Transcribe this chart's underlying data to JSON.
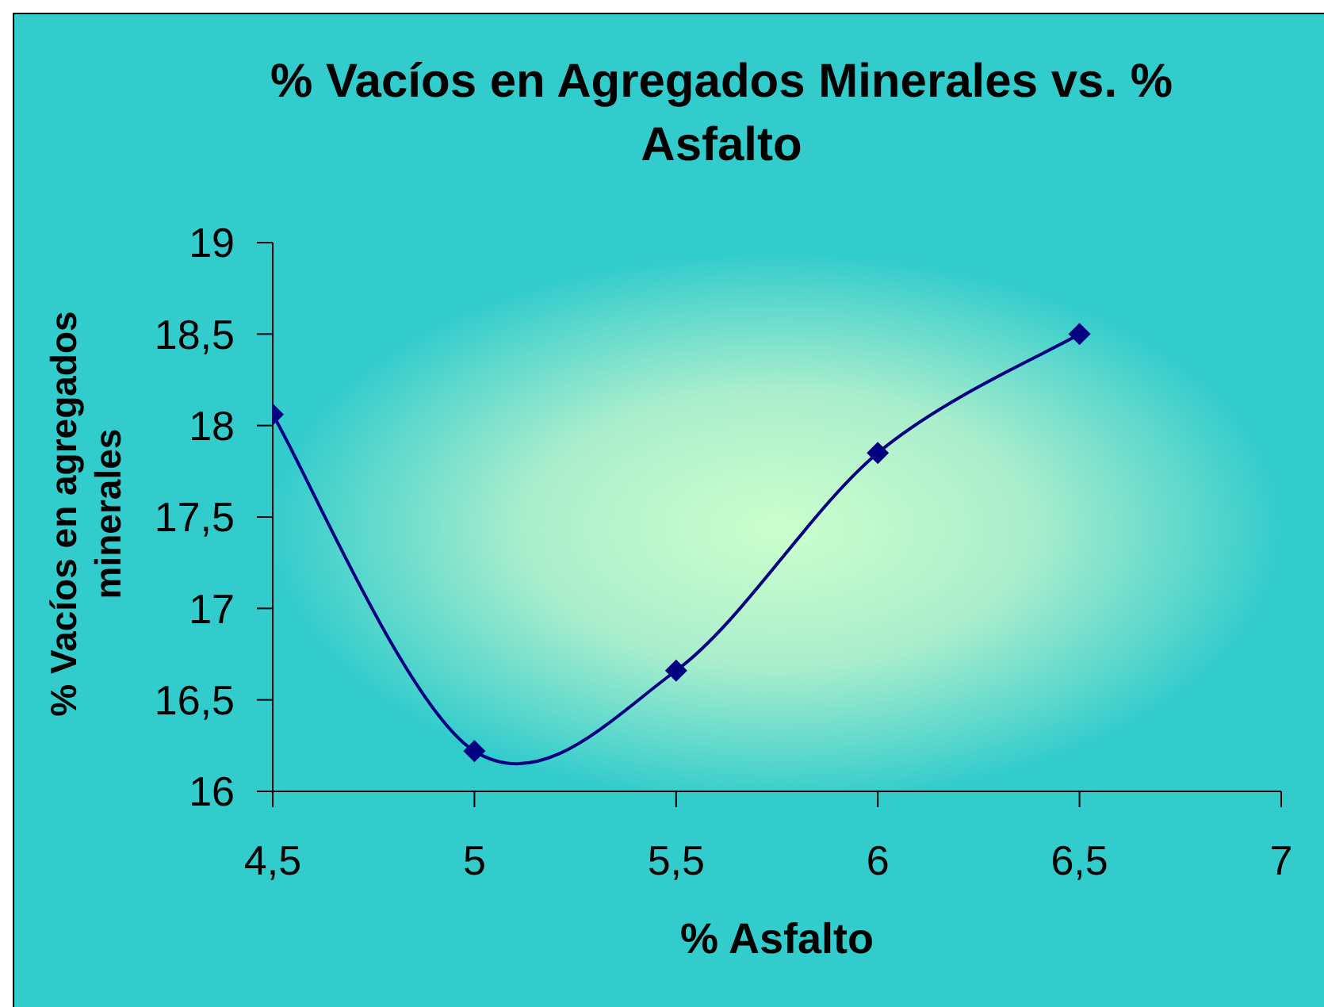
{
  "chart_data": {
    "type": "line",
    "title": "% Vacíos en Agregados Minerales vs. % Asfalto",
    "xlabel": "% Asfalto",
    "ylabel": "% Vacíos en agregados minerales",
    "x": [
      4.5,
      5,
      5.5,
      6,
      6.5
    ],
    "series": [
      {
        "color": "#000080",
        "values": [
          18.06,
          16.22,
          16.66,
          17.85,
          18.5
        ]
      }
    ],
    "xlim": [
      4.5,
      7
    ],
    "xticks": [
      {
        "value": 4.5,
        "label": "4,5"
      },
      5,
      {
        "value": 5.5,
        "label": "5,5"
      },
      6,
      {
        "value": 6.5,
        "label": "6,5"
      },
      7
    ],
    "ylim": [
      16,
      19
    ],
    "yticks": [
      16,
      {
        "value": 16.5,
        "label": "16,5"
      },
      17,
      {
        "value": 17.5,
        "label": "17,5"
      },
      18,
      {
        "value": 18.5,
        "label": "18,5"
      },
      19
    ],
    "marker": "diamond",
    "line_style": "solid"
  }
}
